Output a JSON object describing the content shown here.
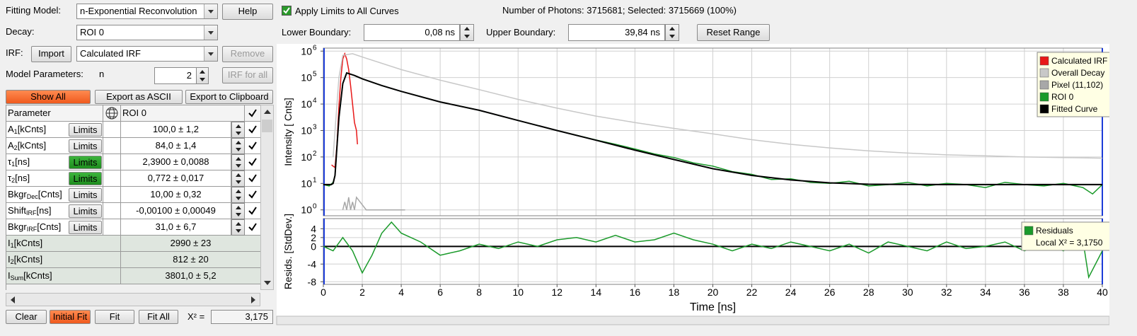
{
  "fitting_model": {
    "label": "Fitting Model:",
    "value": "n-Exponential Reconvolution",
    "help": "Help"
  },
  "decay": {
    "label": "Decay:",
    "value": "ROI 0"
  },
  "irf": {
    "label": "IRF:",
    "import": "Import",
    "value": "Calculated IRF",
    "remove": "Remove"
  },
  "model_parameters": {
    "label": "Model Parameters:",
    "n_label": "n",
    "n": 2,
    "irf_for_all": "IRF for all"
  },
  "toolbar": {
    "show_all": "Show All",
    "export_ascii": "Export as ASCII",
    "export_clipboard": "Export to Clipboard"
  },
  "table": {
    "header": [
      "Parameter",
      "ROI 0"
    ],
    "rows": [
      {
        "name": "A",
        "sub": "1",
        "unit": "[kCnts]",
        "limits": "Limits",
        "limits_active": false,
        "value": "100,0 ± 1,2"
      },
      {
        "name": "A",
        "sub": "2",
        "unit": "[kCnts]",
        "limits": "Limits",
        "limits_active": false,
        "value": "84,0 ± 1,4"
      },
      {
        "name": "τ",
        "sub": "1",
        "unit": "[ns]",
        "limits": "Limits",
        "limits_active": true,
        "value": "2,3900 ± 0,0088"
      },
      {
        "name": "τ",
        "sub": "2",
        "unit": "[ns]",
        "limits": "Limits",
        "limits_active": true,
        "value": "0,772 ± 0,017"
      },
      {
        "name": "Bkgr",
        "sub": "Dec",
        "unit": "[Cnts]",
        "limits": "Limits",
        "limits_active": false,
        "value": "10,00 ± 0,32"
      },
      {
        "name": "Shift",
        "sub": "IRF",
        "unit": "[ns]",
        "limits": "Limits",
        "limits_active": false,
        "value": "-0,00100 ± 0,00049"
      },
      {
        "name": "Bkgr",
        "sub": "IRF",
        "unit": "[Cnts]",
        "limits": "Limits",
        "limits_active": false,
        "value": "31,0 ± 6,7"
      }
    ],
    "derived": [
      {
        "name": "I",
        "sub": "1",
        "unit": "[kCnts]",
        "value": "2990 ± 23"
      },
      {
        "name": "I",
        "sub": "2",
        "unit": "[kCnts]",
        "value": "812 ± 20"
      },
      {
        "name": "I",
        "sub": "Sum",
        "unit": "[kCnts]",
        "value": "3801,0 ± 5,2"
      }
    ]
  },
  "footer": {
    "clear": "Clear",
    "initial_fit": "Initial Fit",
    "fit": "Fit",
    "fit_all": "Fit All",
    "chi_label": "Χ² =",
    "chi": "3,175"
  },
  "top": {
    "apply_limits": "Apply Limits to All Curves",
    "photons": "Number of Photons: 3715681; Selected: 3715669 (100%)",
    "lower_label": "Lower Boundary:",
    "lower": "0,08 ns",
    "upper_label": "Upper Boundary:",
    "upper": "39,84 ns",
    "reset": "Reset Range"
  },
  "chart_data": [
    {
      "type": "line",
      "y_label": "Intensity [ Cnts]",
      "log_y": true,
      "grid": true,
      "legend": "upper right",
      "xlim": [
        0,
        40
      ],
      "xticks": [
        0,
        2,
        4,
        6,
        8,
        10,
        12,
        14,
        16,
        18,
        20,
        22,
        24,
        26,
        28,
        30,
        32,
        34,
        36,
        38,
        40
      ],
      "ylim": [
        0.6,
        1300000
      ],
      "yticks": [
        {
          "value": 1,
          "label": "10",
          "sup": "0"
        },
        {
          "value": 10,
          "label": "10",
          "sup": "1"
        },
        {
          "value": 100,
          "label": "10",
          "sup": "2"
        },
        {
          "value": 1000,
          "label": "10",
          "sup": "3"
        },
        {
          "value": 10000,
          "label": "10",
          "sup": "4"
        },
        {
          "value": 100000,
          "label": "10",
          "sup": "5"
        },
        {
          "value": 1000000,
          "label": "10",
          "sup": "6"
        }
      ],
      "series": [
        {
          "name": "Calculated IRF",
          "color": "#e81818",
          "x": [
            0.42,
            0.5,
            0.6,
            0.7,
            0.8,
            0.9,
            1.0,
            1.1,
            1.2,
            1.3,
            1.4,
            1.5,
            1.6,
            1.7,
            1.75
          ],
          "values": [
            50,
            45,
            40,
            300,
            8000,
            100000,
            500000,
            800000,
            500000,
            200000,
            50000,
            10000,
            2000,
            1000,
            300
          ]
        },
        {
          "name": "Overall Decay",
          "color": "#c8c8c8",
          "x": [
            0.5,
            0.8,
            1,
            1.5,
            2,
            4,
            6,
            8,
            10,
            12,
            14,
            16,
            18,
            20,
            22,
            24,
            26,
            28,
            30,
            32,
            34,
            36,
            38,
            40
          ],
          "values": [
            100,
            100000,
            700000,
            800000,
            600000,
            200000,
            80000,
            35000,
            15000,
            7000,
            3500,
            2000,
            1200,
            750,
            450,
            300,
            220,
            170,
            140,
            120,
            110,
            100,
            95,
            90
          ]
        },
        {
          "name": "Pixel (11,102)",
          "color": "#a8a8a8",
          "x": [
            1,
            1.1,
            1.2,
            1.3,
            1.4,
            1.5,
            1.6,
            1.7,
            2.2,
            2.8,
            3.5,
            4.2
          ],
          "values": [
            1,
            2,
            1,
            3,
            1,
            2,
            1,
            3,
            1,
            1,
            1,
            1
          ]
        },
        {
          "name": "ROI 0",
          "color": "#1a9a2a",
          "x": [
            0,
            0.3,
            0.5,
            0.6,
            0.8,
            1.0,
            1.2,
            1.6,
            2,
            3,
            4,
            6,
            8,
            10,
            12,
            14,
            15,
            16,
            17,
            18,
            19,
            20,
            21,
            22,
            23,
            24,
            25,
            26,
            27,
            28,
            29,
            30,
            31,
            32,
            33,
            34,
            35,
            36,
            37,
            38,
            39,
            39.5,
            40
          ],
          "values": [
            9,
            8,
            11,
            20,
            3000,
            60000,
            150000,
            120000,
            90000,
            50000,
            30000,
            12000,
            5800,
            2400,
            1000,
            440,
            300,
            200,
            130,
            95,
            60,
            45,
            28,
            22,
            14,
            15,
            11,
            10,
            12,
            8,
            9,
            11,
            8,
            10,
            9,
            7,
            11,
            9,
            8,
            10,
            7,
            4,
            9
          ]
        },
        {
          "name": "Fitted Curve",
          "color": "#000000",
          "x": [
            0,
            0.4,
            0.5,
            0.6,
            0.8,
            1.0,
            1.2,
            1.6,
            2,
            3,
            4,
            6,
            8,
            10,
            12,
            14,
            16,
            18,
            20,
            22,
            24,
            26,
            28,
            32,
            36,
            40
          ],
          "values": [
            9,
            9,
            10,
            20,
            3000,
            60000,
            150000,
            120000,
            90000,
            50000,
            30000,
            12000,
            5800,
            2400,
            1000,
            430,
            180,
            80,
            36,
            20,
            13.5,
            10.5,
            9.3,
            9,
            9,
            9
          ]
        }
      ]
    },
    {
      "type": "line",
      "y_label": "Resids. [StdDev.]",
      "x_label": "Time [ns]",
      "grid": true,
      "legend": "upper right",
      "xlim": [
        0,
        40
      ],
      "xticks": [
        0,
        2,
        4,
        6,
        8,
        10,
        12,
        14,
        16,
        18,
        20,
        22,
        24,
        26,
        28,
        30,
        32,
        34,
        36,
        38,
        40
      ],
      "ylim": [
        -8.6,
        6.3
      ],
      "yticks": [
        4,
        2,
        0,
        -4,
        -8
      ],
      "annotation": "Local Χ² = 3,1750",
      "series": [
        {
          "name": "Residuals",
          "color": "#1a9a2a",
          "x": [
            0,
            0.5,
            1,
            1.5,
            2,
            2.5,
            3,
            3.5,
            4,
            5,
            6,
            7,
            8,
            9,
            10,
            11,
            12,
            13,
            14,
            15,
            16,
            17,
            18,
            19,
            20,
            21,
            22,
            23,
            24,
            25,
            26,
            27,
            28,
            29,
            30,
            31,
            32,
            33,
            34,
            35,
            36,
            37,
            38,
            39,
            39.3,
            40
          ],
          "values": [
            0,
            -1,
            2,
            -1,
            -6,
            -2,
            3,
            5.5,
            3,
            1,
            -2,
            -1,
            0.5,
            -0.5,
            1,
            0,
            1.5,
            2,
            1,
            2.5,
            1,
            1.5,
            3,
            1.5,
            0.5,
            -1,
            0.5,
            -0.5,
            1,
            0,
            -1,
            0.5,
            -1.5,
            1,
            0,
            -1,
            1,
            -0.5,
            0,
            1,
            -1,
            0.5,
            -1,
            1.5,
            -7,
            -1
          ]
        }
      ]
    }
  ]
}
